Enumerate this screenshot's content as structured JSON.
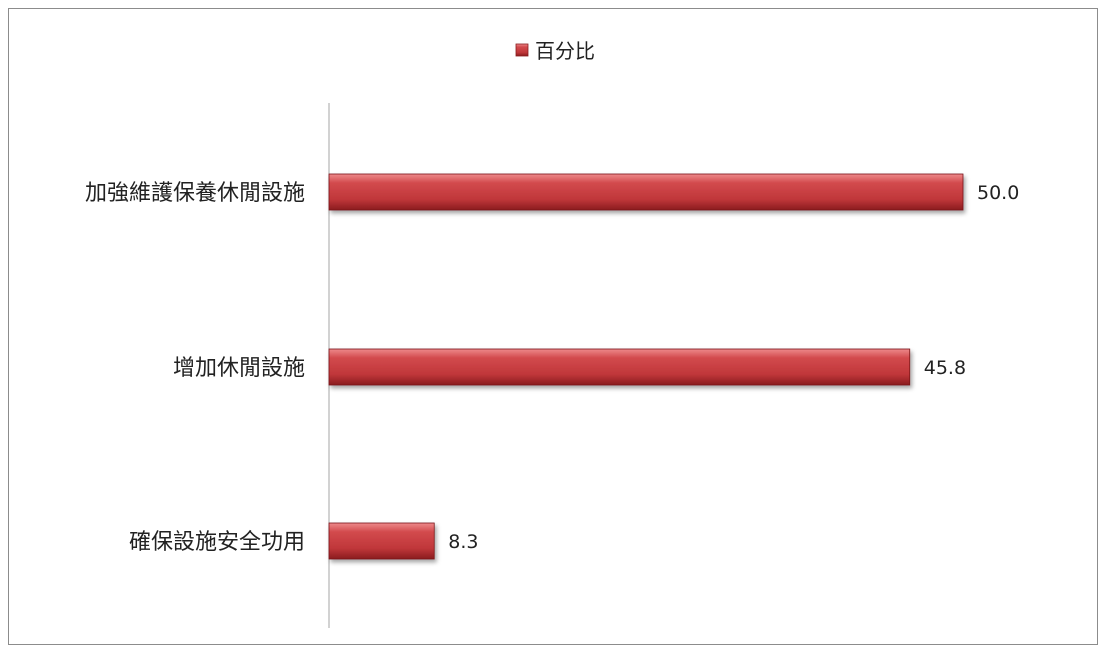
{
  "chart_data": {
    "type": "bar",
    "orientation": "horizontal",
    "categories": [
      "加強維護保養休閒設施",
      "增加休閒設施",
      "確保設施安全功用"
    ],
    "series": [
      {
        "name": "百分比",
        "values": [
          50.0,
          45.8,
          8.3
        ]
      }
    ],
    "data_labels": [
      "50.0",
      "45.8",
      "8.3"
    ],
    "xlim": [
      0,
      50
    ],
    "legend_position": "top",
    "grid": false,
    "colors": {
      "bar": "#c0373a",
      "bar_light": "#ee8a8c",
      "bar_dark": "#8a1c1f",
      "axis": "#a6a6a6"
    }
  }
}
